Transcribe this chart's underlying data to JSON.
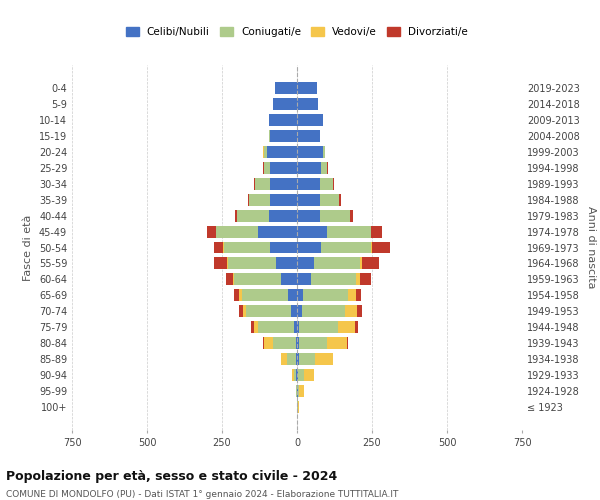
{
  "age_groups": [
    "100+",
    "95-99",
    "90-94",
    "85-89",
    "80-84",
    "75-79",
    "70-74",
    "65-69",
    "60-64",
    "55-59",
    "50-54",
    "45-49",
    "40-44",
    "35-39",
    "30-34",
    "25-29",
    "20-24",
    "15-19",
    "10-14",
    "5-9",
    "0-4"
  ],
  "birth_years": [
    "≤ 1923",
    "1924-1928",
    "1929-1933",
    "1934-1938",
    "1939-1943",
    "1944-1948",
    "1949-1953",
    "1954-1958",
    "1959-1963",
    "1964-1968",
    "1969-1973",
    "1974-1978",
    "1979-1983",
    "1984-1988",
    "1989-1993",
    "1994-1998",
    "1999-2003",
    "2004-2008",
    "2009-2013",
    "2014-2018",
    "2019-2023"
  ],
  "colors": {
    "celibi": "#4472C4",
    "coniugati": "#AECB8B",
    "vedovi": "#F5C64B",
    "divorziati": "#C0392B"
  },
  "males": {
    "celibi": [
      0,
      1,
      2,
      3,
      5,
      10,
      20,
      30,
      55,
      70,
      90,
      130,
      95,
      90,
      90,
      90,
      100,
      90,
      95,
      80,
      75
    ],
    "coniugati": [
      0,
      2,
      8,
      30,
      75,
      120,
      150,
      155,
      155,
      160,
      155,
      140,
      105,
      70,
      50,
      20,
      10,
      2,
      0,
      0,
      0
    ],
    "vedovi": [
      0,
      2,
      8,
      20,
      30,
      15,
      10,
      8,
      3,
      2,
      1,
      1,
      0,
      0,
      0,
      0,
      3,
      0,
      0,
      0,
      0
    ],
    "divorziati": [
      0,
      0,
      0,
      0,
      5,
      8,
      15,
      18,
      25,
      45,
      30,
      28,
      8,
      5,
      3,
      2,
      0,
      0,
      0,
      0,
      0
    ]
  },
  "females": {
    "celibi": [
      1,
      2,
      3,
      5,
      5,
      8,
      15,
      20,
      45,
      55,
      80,
      100,
      75,
      75,
      75,
      80,
      85,
      75,
      85,
      70,
      65
    ],
    "coniugati": [
      1,
      5,
      20,
      55,
      95,
      130,
      145,
      150,
      150,
      155,
      165,
      145,
      100,
      65,
      45,
      20,
      8,
      2,
      0,
      0,
      0
    ],
    "vedovi": [
      5,
      15,
      35,
      60,
      65,
      55,
      40,
      25,
      15,
      8,
      5,
      2,
      0,
      0,
      0,
      0,
      0,
      0,
      0,
      0,
      0
    ],
    "divorziati": [
      0,
      0,
      0,
      0,
      5,
      10,
      15,
      18,
      35,
      55,
      60,
      35,
      10,
      5,
      3,
      2,
      0,
      0,
      0,
      0,
      0
    ]
  },
  "xlim": 750,
  "title": "Popolazione per età, sesso e stato civile - 2024",
  "subtitle": "COMUNE DI MONDOLFO (PU) - Dati ISTAT 1° gennaio 2024 - Elaborazione TUTTITALIA.IT",
  "ylabel_left": "Fasce di età",
  "ylabel_right": "Anni di nascita",
  "legend_labels": [
    "Celibi/Nubili",
    "Coniugati/e",
    "Vedovi/e",
    "Divorziati/e"
  ],
  "bg_color": "#ffffff",
  "grid_color": "#cccccc"
}
